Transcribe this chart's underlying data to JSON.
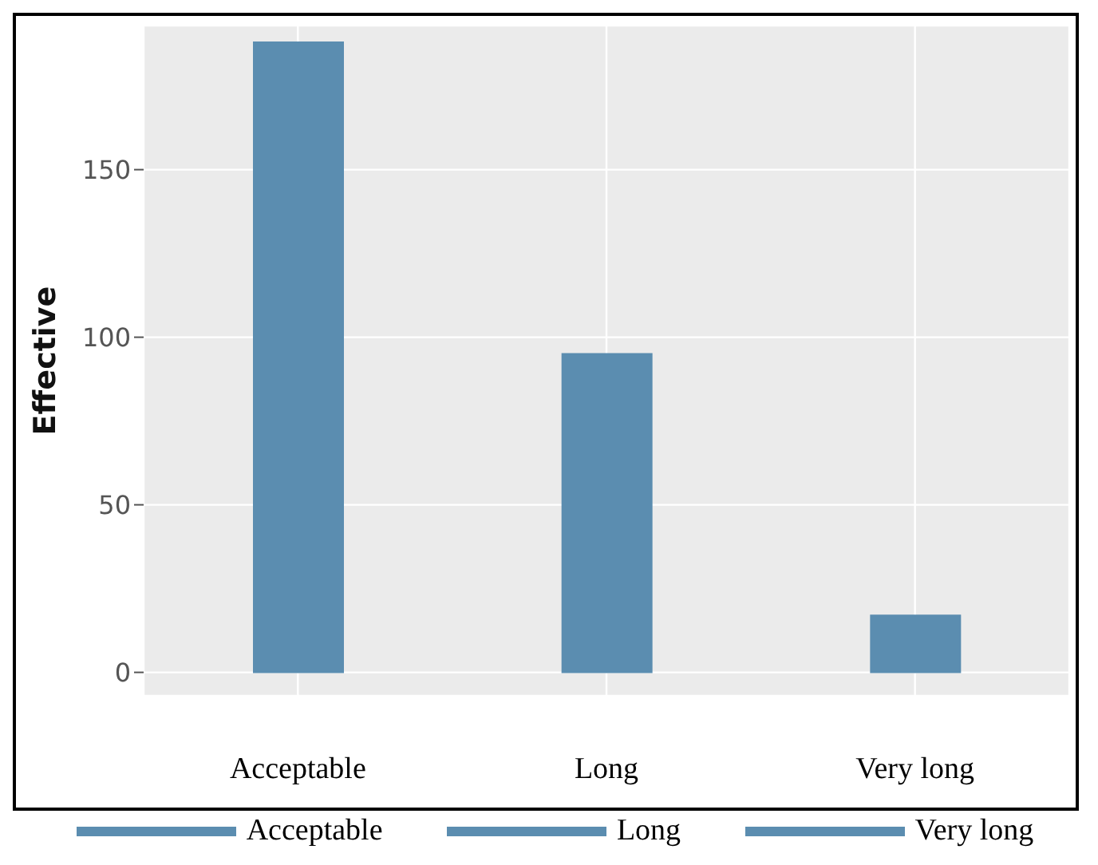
{
  "chart_data": {
    "type": "bar",
    "ylabel": "Effective",
    "categories": [
      "Acceptable",
      "Long",
      "Very long"
    ],
    "values": [
      188,
      95,
      17
    ],
    "color": "#5b8db0",
    "ylim": [
      -7,
      193
    ],
    "yticks": [
      0,
      50,
      100,
      150
    ],
    "grid": true
  }
}
